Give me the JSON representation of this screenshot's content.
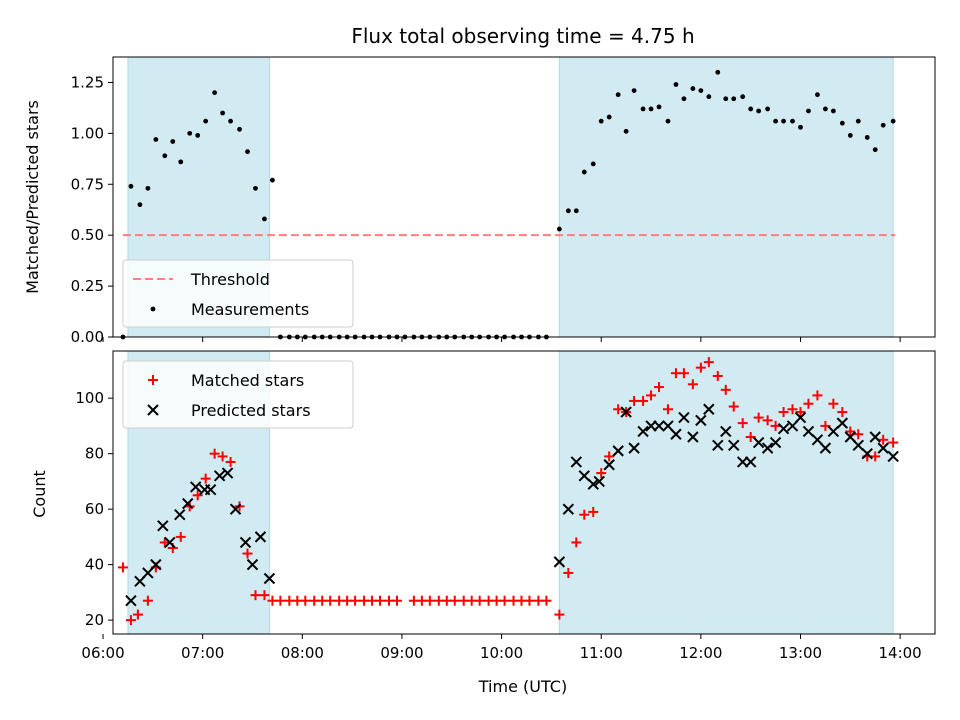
{
  "title": "Flux total observing time = 4.75 h",
  "colors": {
    "span": "#add8e6",
    "matched": "#ff0000",
    "predicted": "#000000",
    "threshold": "#ff7f7f",
    "measure": "#000000"
  },
  "chart_data": [
    {
      "type": "scatter",
      "ylabel": "Matched/Predicted stars",
      "xlim": [
        6.1,
        14.35
      ],
      "ylim": [
        0,
        1.375
      ],
      "yticks": [
        0.0,
        0.25,
        0.5,
        0.75,
        1.0,
        1.25
      ],
      "ytick_labels": [
        "0.00",
        "0.25",
        "0.50",
        "0.75",
        "1.00",
        "1.25"
      ],
      "xticks": [
        6,
        7,
        8,
        9,
        10,
        11,
        12,
        13,
        14
      ],
      "shaded_spans": [
        [
          6.25,
          7.67
        ],
        [
          10.58,
          13.93
        ]
      ],
      "legend": {
        "position": "lower-left",
        "entries": [
          "Threshold",
          "Measurements"
        ]
      },
      "threshold": {
        "name": "Threshold",
        "value": 0.5,
        "x_range": [
          6.2,
          13.95
        ]
      },
      "series": [
        {
          "name": "Measurements",
          "x": [
            6.2,
            6.28,
            6.37,
            6.45,
            6.53,
            6.62,
            6.7,
            6.78,
            6.87,
            6.95,
            7.03,
            7.12,
            7.2,
            7.28,
            7.37,
            7.45,
            7.53,
            7.62,
            7.7,
            7.78,
            7.87,
            7.95,
            8.03,
            8.12,
            8.2,
            8.28,
            8.37,
            8.45,
            8.53,
            8.62,
            8.7,
            8.78,
            8.87,
            8.95,
            9.03,
            9.12,
            9.2,
            9.28,
            9.37,
            9.45,
            9.53,
            9.62,
            9.7,
            9.78,
            9.87,
            9.95,
            10.03,
            10.12,
            10.2,
            10.28,
            10.37,
            10.45,
            10.58,
            10.67,
            10.75,
            10.83,
            10.92,
            11.0,
            11.08,
            11.17,
            11.25,
            11.33,
            11.42,
            11.5,
            11.58,
            11.67,
            11.75,
            11.83,
            11.92,
            12.0,
            12.08,
            12.17,
            12.25,
            12.33,
            12.42,
            12.5,
            12.58,
            12.67,
            12.75,
            12.83,
            12.92,
            13.0,
            13.08,
            13.17,
            13.25,
            13.33,
            13.42,
            13.5,
            13.58,
            13.67,
            13.75,
            13.83,
            13.93
          ],
          "y": [
            0.0,
            0.74,
            0.65,
            0.73,
            0.97,
            0.89,
            0.96,
            0.86,
            1.0,
            0.99,
            1.06,
            1.2,
            1.1,
            1.06,
            1.02,
            0.91,
            0.73,
            0.58,
            0.77,
            0.0,
            0.0,
            0.0,
            0.0,
            0.0,
            0.0,
            0.0,
            0.0,
            0.0,
            0.0,
            0.0,
            0.0,
            0.0,
            0.0,
            0.0,
            0.0,
            0.0,
            0.0,
            0.0,
            0.0,
            0.0,
            0.0,
            0.0,
            0.0,
            0.0,
            0.0,
            0.0,
            0.0,
            0.0,
            0.0,
            0.0,
            0.0,
            0.0,
            0.53,
            0.62,
            0.62,
            0.81,
            0.85,
            1.06,
            1.08,
            1.19,
            1.01,
            1.21,
            1.12,
            1.12,
            1.13,
            1.06,
            1.24,
            1.17,
            1.22,
            1.21,
            1.18,
            1.3,
            1.17,
            1.17,
            1.18,
            1.12,
            1.11,
            1.12,
            1.06,
            1.06,
            1.06,
            1.03,
            1.11,
            1.19,
            1.12,
            1.11,
            1.05,
            0.99,
            1.06,
            0.98,
            0.92,
            1.04,
            1.06
          ]
        }
      ]
    },
    {
      "type": "scatter",
      "ylabel": "Count",
      "xlabel": "Time (UTC)",
      "xlim": [
        6.1,
        14.35
      ],
      "ylim": [
        15,
        117
      ],
      "yticks": [
        20,
        40,
        60,
        80,
        100
      ],
      "xticks": [
        6,
        7,
        8,
        9,
        10,
        11,
        12,
        13,
        14
      ],
      "xtick_labels": [
        "06:00",
        "07:00",
        "08:00",
        "09:00",
        "10:00",
        "11:00",
        "12:00",
        "13:00",
        "14:00"
      ],
      "shaded_spans": [
        [
          6.25,
          7.67
        ],
        [
          10.58,
          13.93
        ]
      ],
      "legend": {
        "position": "upper-left",
        "entries": [
          "Matched stars",
          "Predicted stars"
        ]
      },
      "series": [
        {
          "name": "Matched stars",
          "marker": "+",
          "x": [
            6.2,
            6.28,
            6.35,
            6.45,
            6.53,
            6.62,
            6.7,
            6.78,
            6.87,
            6.95,
            7.03,
            7.12,
            7.2,
            7.28,
            7.37,
            7.45,
            7.53,
            7.62,
            7.7,
            7.78,
            7.87,
            7.95,
            8.03,
            8.12,
            8.2,
            8.28,
            8.37,
            8.45,
            8.53,
            8.62,
            8.7,
            8.78,
            8.87,
            8.95,
            9.12,
            9.2,
            9.28,
            9.37,
            9.45,
            9.53,
            9.62,
            9.7,
            9.78,
            9.87,
            9.95,
            10.03,
            10.12,
            10.2,
            10.28,
            10.37,
            10.45,
            10.58,
            10.67,
            10.75,
            10.83,
            10.92,
            11.0,
            11.08,
            11.17,
            11.25,
            11.33,
            11.42,
            11.5,
            11.58,
            11.67,
            11.75,
            11.83,
            11.92,
            12.0,
            12.08,
            12.17,
            12.25,
            12.33,
            12.42,
            12.5,
            12.58,
            12.67,
            12.75,
            12.83,
            12.92,
            13.0,
            13.08,
            13.17,
            13.25,
            13.33,
            13.42,
            13.5,
            13.58,
            13.67,
            13.75,
            13.83,
            13.93
          ],
          "y": [
            39,
            20,
            22,
            27,
            39,
            48,
            46,
            50,
            61,
            65,
            71,
            80,
            79,
            77,
            61,
            44,
            29,
            29,
            27,
            27,
            27,
            27,
            27,
            27,
            27,
            27,
            27,
            27,
            27,
            27,
            27,
            27,
            27,
            27,
            27,
            27,
            27,
            27,
            27,
            27,
            27,
            27,
            27,
            27,
            27,
            27,
            27,
            27,
            27,
            27,
            27,
            22,
            37,
            48,
            58,
            59,
            73,
            79,
            96,
            95,
            99,
            99,
            101,
            104,
            96,
            109,
            109,
            105,
            111,
            113,
            108,
            103,
            97,
            91,
            86,
            93,
            92,
            90,
            95,
            96,
            95,
            98,
            101,
            90,
            98,
            95,
            88,
            87,
            79,
            79,
            85,
            84
          ]
        },
        {
          "name": "Predicted stars",
          "marker": "x",
          "x": [
            6.28,
            6.37,
            6.45,
            6.53,
            6.6,
            6.67,
            6.77,
            6.85,
            6.93,
            7.02,
            7.08,
            7.17,
            7.25,
            7.33,
            7.43,
            7.5,
            7.58,
            7.67,
            10.58,
            10.67,
            10.75,
            10.83,
            10.92,
            10.98,
            11.08,
            11.17,
            11.25,
            11.33,
            11.42,
            11.5,
            11.58,
            11.67,
            11.75,
            11.83,
            11.92,
            12.0,
            12.08,
            12.17,
            12.25,
            12.33,
            12.42,
            12.5,
            12.58,
            12.67,
            12.75,
            12.83,
            12.92,
            13.0,
            13.08,
            13.17,
            13.25,
            13.33,
            13.42,
            13.5,
            13.58,
            13.67,
            13.75,
            13.83,
            13.93
          ],
          "y": [
            27,
            34,
            37,
            40,
            54,
            48,
            58,
            62,
            68,
            67,
            67,
            72,
            73,
            60,
            48,
            40,
            50,
            35,
            41,
            60,
            77,
            72,
            69,
            70,
            76,
            81,
            95,
            82,
            88,
            90,
            90,
            90,
            87,
            93,
            86,
            92,
            96,
            83,
            88,
            83,
            77,
            77,
            84,
            82,
            84,
            89,
            90,
            93,
            88,
            85,
            82,
            88,
            91,
            86,
            83,
            80,
            86,
            82,
            79
          ]
        }
      ]
    }
  ]
}
